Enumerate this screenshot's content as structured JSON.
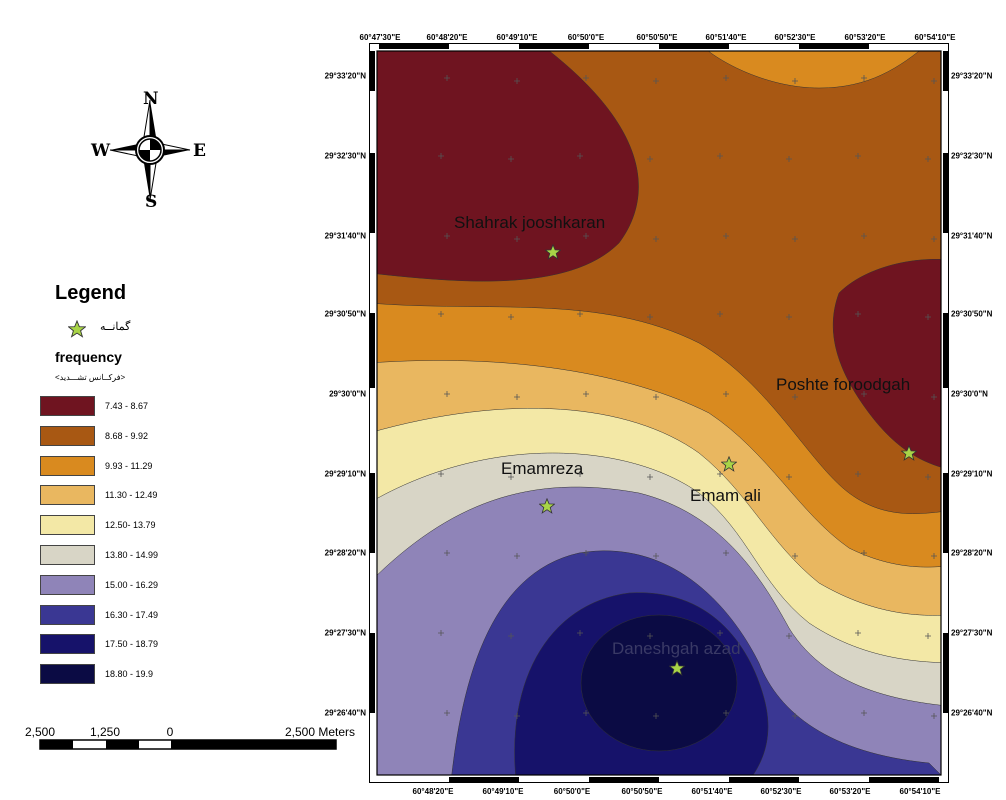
{
  "colors": {
    "classes": [
      "#6f1420",
      "#a85813",
      "#d98a1f",
      "#e9b760",
      "#f3e8a6",
      "#d8d5c6",
      "#8f84b8",
      "#3a3793",
      "#16126a",
      "#0b0b44"
    ],
    "marker_fill": "#a8d447",
    "frame": "#000000"
  },
  "map": {
    "top_longitudes": [
      "60°47'30\"E",
      "60°48'20\"E",
      "60°49'10\"E",
      "60°50'0\"E",
      "60°50'50\"E",
      "60°51'40\"E",
      "60°52'30\"E",
      "60°53'20\"E",
      "60°54'10\"E"
    ],
    "bottom_longitudes": [
      "60°48'20\"E",
      "60°49'10\"E",
      "60°50'0\"E",
      "60°50'50\"E",
      "60°51'40\"E",
      "60°52'30\"E",
      "60°53'20\"E",
      "60°54'10\"E"
    ],
    "latitudes": [
      "29°33'20\"N",
      "29°32'30\"N",
      "29°31'40\"N",
      "29°30'50\"N",
      "29°30'0\"N",
      "29°29'10\"N",
      "29°28'20\"N",
      "29°27'30\"N",
      "29°26'40\"N"
    ],
    "places": [
      {
        "name": "Shahrak jooshkaran"
      },
      {
        "name": "Poshte foroodgah"
      },
      {
        "name": "Emamreza"
      },
      {
        "name": "Emam ali"
      },
      {
        "name": "Daneshgah azad"
      }
    ]
  },
  "compass": {
    "n": "N",
    "s": "S",
    "e": "E",
    "w": "W",
    "icon": "compass-rose-icon"
  },
  "legend": {
    "title": "Legend",
    "marker_label": "گمانــه",
    "marker_icon": "star-icon",
    "field_title": "frequency",
    "field_subtitle": "<فرکــانس تشـــدید>",
    "classes": [
      "7.43 - 8.67",
      "8.68 - 9.92",
      "9.93 - 11.29",
      "11.30 - 12.49",
      "12.50- 13.79",
      "13.80 - 14.99",
      "15.00 - 16.29",
      "16.30 - 17.49",
      "17.50 - 18.79",
      "18.80 - 19.9"
    ]
  },
  "scale": {
    "labels": [
      "2,500",
      "1,250",
      "0",
      "2,500 Meters"
    ]
  }
}
